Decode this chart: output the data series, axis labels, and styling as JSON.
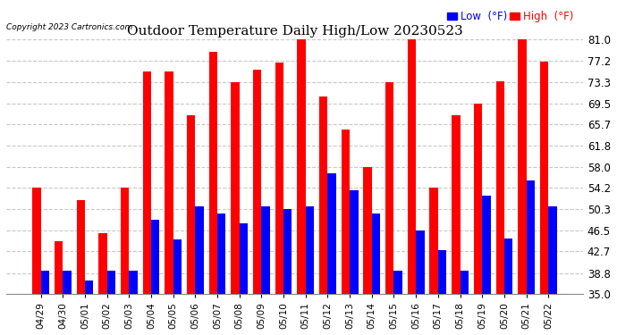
{
  "title": "Outdoor Temperature Daily High/Low 20230523",
  "copyright": "Copyright 2023 Cartronics.com",
  "legend_low": "Low  (°F)",
  "legend_high": "High  (°F)",
  "low_color": "#0000ff",
  "high_color": "#ff0000",
  "background_color": "#ffffff",
  "grid_color": "#c8c8c8",
  "ymin": 35.0,
  "ymax": 81.0,
  "yticks": [
    35.0,
    38.8,
    42.7,
    46.5,
    50.3,
    54.2,
    58.0,
    61.8,
    65.7,
    69.5,
    73.3,
    77.2,
    81.0
  ],
  "dates": [
    "04/29",
    "04/30",
    "05/01",
    "05/02",
    "05/03",
    "05/04",
    "05/05",
    "05/06",
    "05/07",
    "05/08",
    "05/09",
    "05/10",
    "05/11",
    "05/12",
    "05/13",
    "05/14",
    "05/15",
    "05/16",
    "05/17",
    "05/18",
    "05/19",
    "05/20",
    "05/21",
    "05/22"
  ],
  "highs": [
    54.2,
    44.6,
    52.0,
    46.0,
    54.2,
    75.2,
    75.2,
    67.3,
    78.8,
    73.3,
    75.6,
    76.8,
    81.0,
    70.7,
    64.8,
    58.0,
    73.3,
    81.0,
    54.2,
    67.3,
    69.5,
    73.5,
    81.0,
    77.0
  ],
  "lows": [
    39.2,
    39.2,
    37.4,
    39.2,
    39.2,
    48.5,
    44.8,
    50.8,
    49.5,
    47.8,
    50.8,
    50.3,
    50.8,
    56.8,
    53.8,
    49.5,
    39.2,
    46.5,
    43.0,
    39.2,
    52.8,
    45.0,
    55.6,
    50.8
  ]
}
